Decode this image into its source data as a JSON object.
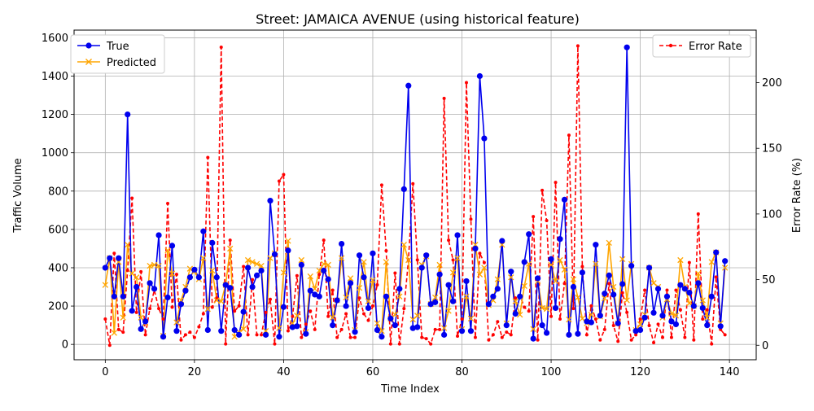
{
  "chart_data": {
    "type": "line",
    "title": "Street: JAMAICA AVENUE (using historical feature)",
    "xlabel": "Time Index",
    "ylabel": "Traffic Volume",
    "y2label": "Error Rate (%)",
    "xlim": [
      -7,
      146
    ],
    "ylim": [
      -80,
      1640
    ],
    "y2lim": [
      -11,
      240
    ],
    "xticks": [
      0,
      20,
      40,
      60,
      80,
      100,
      120,
      140
    ],
    "yticks": [
      0,
      200,
      400,
      600,
      800,
      1000,
      1200,
      1400,
      1600
    ],
    "y2ticks": [
      0,
      50,
      100,
      150,
      200
    ],
    "grid": true,
    "legend_left_placement": "upper-left",
    "legend_right_placement": "upper-right",
    "series": [
      {
        "name": "True",
        "axis": "left",
        "color": "#0000ee",
        "marker": "circle",
        "values": [
          400,
          450,
          250,
          450,
          250,
          1200,
          175,
          300,
          80,
          120,
          320,
          290,
          570,
          40,
          245,
          515,
          70,
          210,
          280,
          350,
          390,
          350,
          590,
          75,
          530,
          350,
          70,
          310,
          295,
          75,
          50,
          170,
          400,
          300,
          360,
          385,
          50,
          750,
          470,
          40,
          195,
          490,
          90,
          95,
          415,
          55,
          280,
          260,
          250,
          385,
          340,
          100,
          230,
          525,
          200,
          320,
          65,
          465,
          350,
          190,
          475,
          75,
          40,
          250,
          135,
          100,
          290,
          810,
          1350,
          85,
          90,
          400,
          465,
          210,
          220,
          365,
          50,
          310,
          225,
          570,
          70,
          330,
          70,
          500,
          1400,
          1075,
          210,
          250,
          290,
          540,
          100,
          380,
          160,
          250,
          430,
          575,
          30,
          345,
          100,
          60,
          445,
          190,
          550,
          755,
          50,
          300,
          55,
          375,
          120,
          115,
          520,
          150,
          265,
          360,
          260,
          110,
          315,
          1550,
          410,
          70,
          75,
          140,
          400,
          165,
          290,
          150,
          250,
          120,
          105,
          310,
          290,
          270,
          200,
          320,
          190,
          100,
          250,
          480,
          95,
          435
        ]
      },
      {
        "name": "Predicted",
        "axis": "left",
        "color": "#ffa500",
        "marker": "x",
        "values": [
          310,
          450,
          60,
          430,
          140,
          520,
          370,
          350,
          140,
          110,
          410,
          415,
          410,
          45,
          490,
          370,
          115,
          230,
          300,
          395,
          380,
          340,
          450,
          185,
          385,
          230,
          225,
          310,
          500,
          40,
          65,
          80,
          440,
          430,
          420,
          410,
          70,
          450,
          475,
          85,
          375,
          540,
          110,
          150,
          440,
          65,
          355,
          290,
          385,
          420,
          415,
          140,
          230,
          450,
          245,
          345,
          75,
          295,
          430,
          225,
          335,
          110,
          70,
          430,
          135,
          155,
          250,
          520,
          440,
          130,
          150,
          415,
          460,
          210,
          245,
          415,
          85,
          175,
          375,
          450,
          80,
          250,
          135,
          520,
          365,
          400,
          205,
          230,
          340,
          520,
          110,
          350,
          225,
          155,
          305,
          420,
          80,
          330,
          190,
          185,
          415,
          330,
          440,
          390,
          130,
          340,
          245,
          135,
          110,
          155,
          420,
          145,
          240,
          530,
          300,
          110,
          445,
          230,
          420,
          75,
          105,
          155,
          400,
          320,
          300,
          140,
          235,
          160,
          150,
          440,
          300,
          215,
          200,
          370,
          230,
          140,
          430,
          480,
          110,
          400
        ]
      },
      {
        "name": "Error Rate",
        "axis": "right",
        "color": "#ff0000",
        "marker": "dot",
        "values": [
          20,
          0,
          70,
          12,
          10,
          57,
          112,
          25,
          56,
          8,
          28,
          42,
          28,
          20,
          108,
          29,
          54,
          4,
          8,
          10,
          6,
          14,
          24,
          143,
          29,
          36,
          227,
          1,
          80,
          26,
          30,
          60,
          8,
          50,
          8,
          8,
          25,
          35,
          1,
          125,
          130,
          11,
          22,
          53,
          6,
          16,
          26,
          12,
          54,
          80,
          22,
          42,
          6,
          12,
          24,
          6,
          6,
          36,
          24,
          19,
          30,
          46,
          122,
          72,
          1,
          55,
          1,
          28,
          65,
          123,
          65,
          6,
          5,
          1,
          12,
          12,
          188,
          80,
          65,
          7,
          20,
          200,
          96,
          6,
          70,
          63,
          4,
          8,
          18,
          6,
          10,
          8,
          36,
          38,
          29,
          26,
          98,
          4,
          118,
          95,
          22,
          124,
          20,
          47,
          160,
          28,
          228,
          60,
          8,
          30,
          20,
          4,
          12,
          47,
          15,
          3,
          40,
          25,
          4,
          8,
          20,
          42,
          15,
          2,
          16,
          6,
          42,
          6,
          42,
          27,
          6,
          63,
          4,
          100,
          20,
          27,
          1,
          52,
          12,
          8
        ]
      }
    ]
  }
}
